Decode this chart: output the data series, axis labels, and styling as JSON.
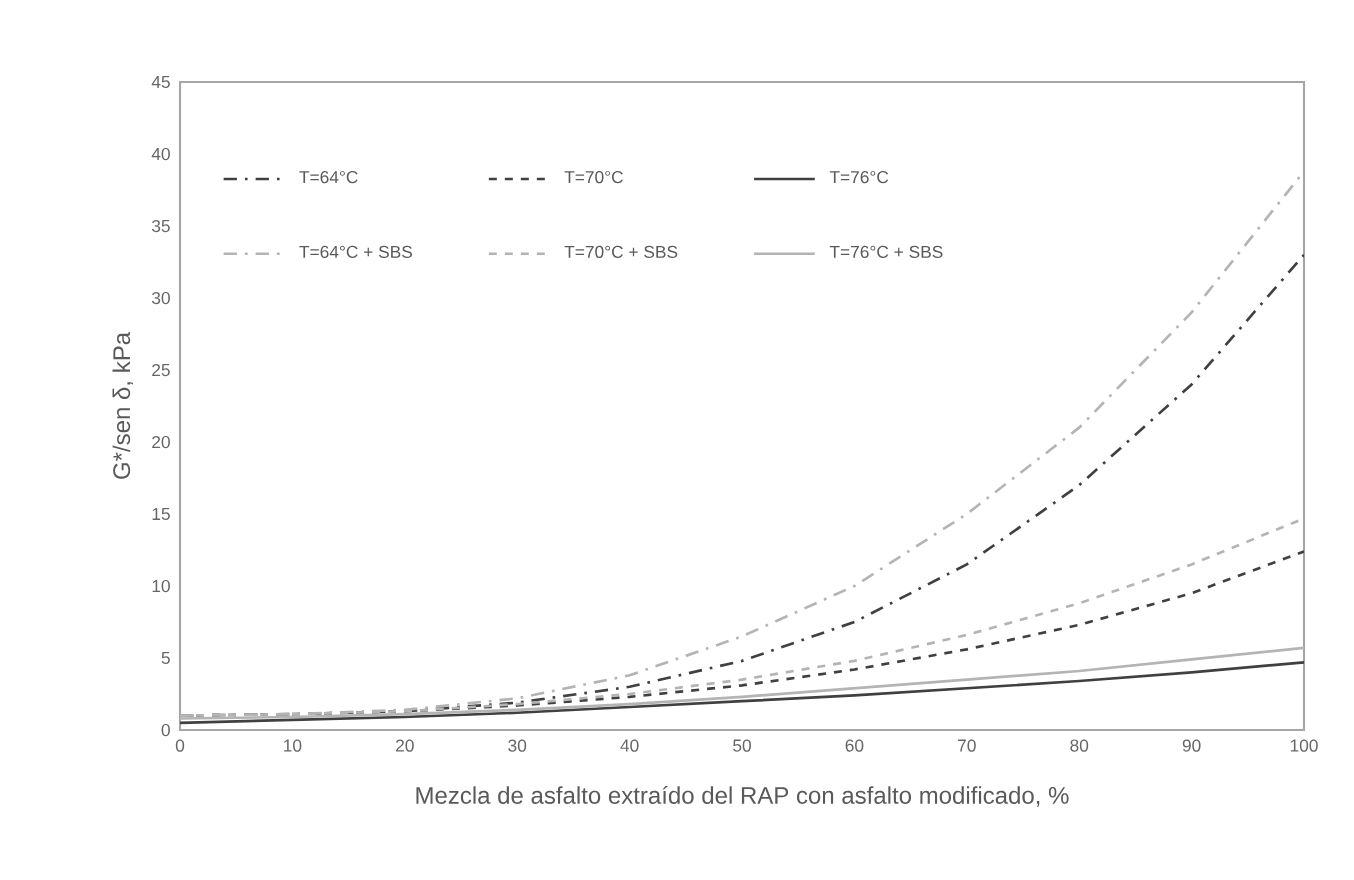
{
  "chart_data": {
    "type": "line",
    "xlabel": "Mezcla de asfalto extraído del RAP con asfalto modificado, %",
    "ylabel": "G*/sen δ, kPa",
    "x": [
      0,
      10,
      20,
      30,
      40,
      50,
      60,
      70,
      80,
      90,
      100
    ],
    "series": [
      {
        "name": "T=64°C",
        "color": "#404040",
        "line_style": "dashdot",
        "values": [
          1.0,
          1.1,
          1.3,
          1.9,
          3.0,
          4.8,
          7.5,
          11.5,
          17,
          24,
          33
        ]
      },
      {
        "name": "T=70°C",
        "color": "#404040",
        "line_style": "dashed",
        "values": [
          1.0,
          1.1,
          1.3,
          1.7,
          2.3,
          3.1,
          4.2,
          5.6,
          7.3,
          9.5,
          12.4
        ]
      },
      {
        "name": "T=76°C",
        "color": "#404040",
        "line_style": "solid",
        "values": [
          0.5,
          0.7,
          0.9,
          1.2,
          1.6,
          2.0,
          2.4,
          2.9,
          3.4,
          4.0,
          4.7
        ]
      },
      {
        "name": "T=64°C + SBS",
        "color": "#b4b4b4",
        "line_style": "dashdot",
        "values": [
          1.0,
          1.1,
          1.4,
          2.2,
          3.8,
          6.5,
          10,
          15,
          21,
          29,
          38.8
        ]
      },
      {
        "name": "T=70°C + SBS",
        "color": "#b4b4b4",
        "line_style": "dashed",
        "values": [
          1.0,
          1.1,
          1.3,
          1.8,
          2.5,
          3.5,
          4.8,
          6.6,
          8.8,
          11.5,
          14.7
        ]
      },
      {
        "name": "T=76°C + SBS",
        "color": "#b4b4b4",
        "line_style": "solid",
        "values": [
          0.8,
          0.9,
          1.1,
          1.4,
          1.8,
          2.3,
          2.9,
          3.5,
          4.1,
          4.9,
          5.7
        ]
      }
    ],
    "xlim": [
      0,
      100
    ],
    "ylim": [
      0,
      45
    ],
    "xticks": [
      0,
      10,
      20,
      30,
      40,
      50,
      60,
      70,
      80,
      90,
      100
    ],
    "yticks": [
      0,
      5,
      10,
      15,
      20,
      25,
      30,
      35,
      40,
      45
    ],
    "grid": false,
    "legend": "top left",
    "marker": "none"
  }
}
